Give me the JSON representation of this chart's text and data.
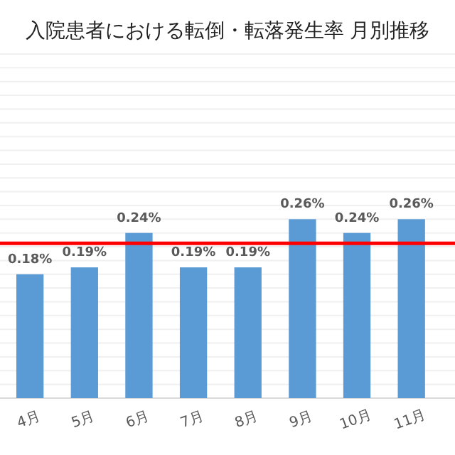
{
  "chart_data": {
    "type": "bar",
    "title": "入院患者における転倒・転落発生率 月別推移",
    "categories": [
      "4月",
      "5月",
      "6月",
      "7月",
      "8月",
      "9月",
      "10月",
      "11月"
    ],
    "values": [
      0.18,
      0.19,
      0.24,
      0.19,
      0.19,
      0.26,
      0.24,
      0.26
    ],
    "value_labels": [
      "0.18%",
      "0.19%",
      "0.24%",
      "0.19%",
      "0.19%",
      "0.26%",
      "0.24%",
      "0.26%"
    ],
    "color": "#5b9bd5",
    "ylim": [
      0,
      0.5
    ],
    "yticks": [
      {
        "value": 0,
        "label": null
      },
      {
        "value": 0.02,
        "label": null
      },
      {
        "value": 0.04,
        "label": null
      },
      {
        "value": 0.06,
        "label": null
      },
      {
        "value": 0.08,
        "label": null
      },
      {
        "value": 0.1,
        "label": null
      },
      {
        "value": 0.12,
        "label": null
      },
      {
        "value": 0.14,
        "label": null
      },
      {
        "value": 0.16,
        "label": null
      },
      {
        "value": 0.18,
        "label": null
      },
      {
        "value": 0.2,
        "label": null
      },
      {
        "value": 0.22,
        "label": null
      },
      {
        "value": 0.24,
        "label": null
      },
      {
        "value": 0.26,
        "label": null
      },
      {
        "value": 0.28,
        "label": null
      },
      {
        "value": 0.3,
        "label": null
      },
      {
        "value": 0.32,
        "label": null
      },
      {
        "value": 0.34,
        "label": null
      },
      {
        "value": 0.36,
        "label": null
      },
      {
        "value": 0.38,
        "label": null
      },
      {
        "value": 0.4,
        "label": null
      },
      {
        "value": 0.42,
        "label": null
      },
      {
        "value": 0.44,
        "label": null
      },
      {
        "value": 0.46,
        "label": null
      },
      {
        "value": 0.48,
        "label": null
      },
      {
        "value": 0.5,
        "label": null
      }
    ],
    "tick_labels": "x",
    "grid": "y",
    "ref_lines": [
      {
        "axis": "y",
        "value": 0.225,
        "color": "#ff0000"
      }
    ]
  }
}
